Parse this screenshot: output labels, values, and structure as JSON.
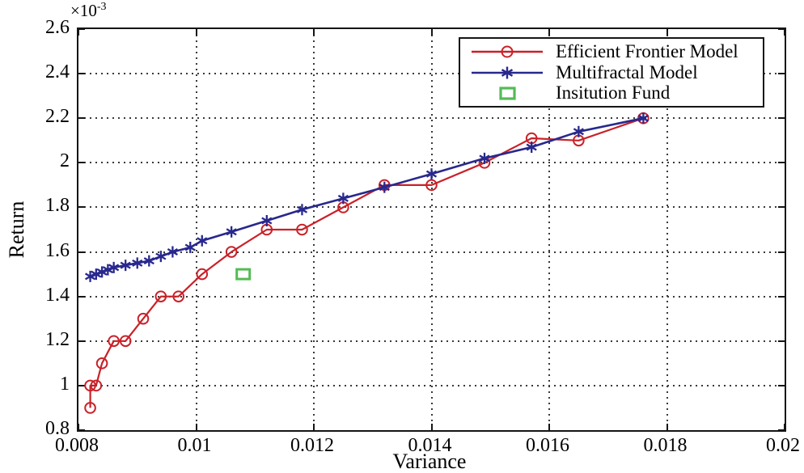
{
  "colors": {
    "frame": "#151515",
    "grid": "#3a3a3a",
    "efficient_frontier": "#c92128",
    "multifractal": "#28288e",
    "institution_fund": "#54bb54"
  },
  "chart_data": {
    "type": "line",
    "title": "",
    "xlabel": "Variance",
    "ylabel": "Return",
    "y_multiplier": {
      "base": "×10",
      "exp": "-3"
    },
    "xlim": [
      0.008,
      0.02
    ],
    "ylim": [
      0.8,
      2.6
    ],
    "y_unit_multiplier": 0.001,
    "grid": true,
    "legend_position": "top-right",
    "xticks": [
      "0.008",
      "0.01",
      "0.012",
      "0.014",
      "0.016",
      "0.018",
      "0.02"
    ],
    "yticks": [
      "0.8",
      "1",
      "1.2",
      "1.4",
      "1.6",
      "1.8",
      "2",
      "2.2",
      "2.4",
      "2.6"
    ],
    "series": [
      {
        "name": "Efficient Frontier Model",
        "color": "#c92128",
        "marker": "circle",
        "line": true,
        "x": [
          0.0082,
          0.0082,
          0.0083,
          0.0084,
          0.0086,
          0.0088,
          0.0091,
          0.0094,
          0.0097,
          0.0101,
          0.0106,
          0.0112,
          0.0118,
          0.0125,
          0.0132,
          0.014,
          0.0149,
          0.0157,
          0.0165,
          0.0176
        ],
        "y": [
          0.9,
          1.0,
          1.0,
          1.1,
          1.2,
          1.2,
          1.3,
          1.4,
          1.4,
          1.5,
          1.6,
          1.7,
          1.7,
          1.8,
          1.9,
          1.9,
          2.0,
          2.11,
          2.1,
          2.2
        ]
      },
      {
        "name": "Multifractal Model",
        "color": "#28288e",
        "marker": "asterisk",
        "line": true,
        "x": [
          0.0082,
          0.0083,
          0.0084,
          0.0085,
          0.0086,
          0.0088,
          0.009,
          0.0092,
          0.0094,
          0.0096,
          0.0099,
          0.0101,
          0.0106,
          0.0112,
          0.0118,
          0.0125,
          0.0132,
          0.014,
          0.0149,
          0.0157,
          0.0165,
          0.0176
        ],
        "y": [
          1.49,
          1.5,
          1.51,
          1.52,
          1.53,
          1.54,
          1.55,
          1.56,
          1.58,
          1.6,
          1.62,
          1.65,
          1.69,
          1.74,
          1.79,
          1.84,
          1.89,
          1.95,
          2.02,
          2.07,
          2.14,
          2.2
        ]
      },
      {
        "name": "Insitution Fund",
        "color": "#54bb54",
        "marker": "square",
        "line": false,
        "x": [
          0.0108
        ],
        "y": [
          1.5
        ]
      }
    ]
  }
}
